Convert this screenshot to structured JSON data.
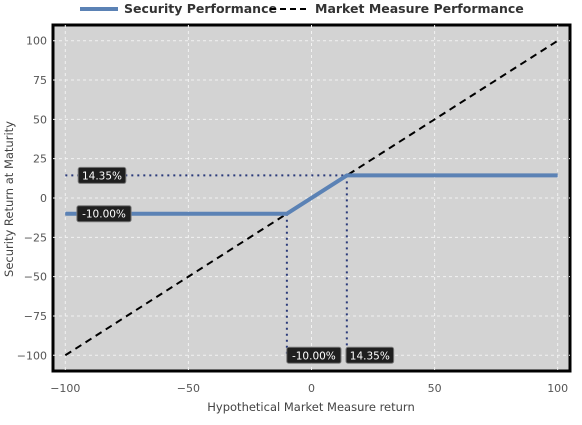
{
  "chart_data": {
    "type": "line",
    "xlabel": "Hypothetical Market Measure return",
    "ylabel": "Security Return at Maturity",
    "xlim": [
      -105,
      105
    ],
    "ylim": [
      -110,
      110
    ],
    "xticks": [
      -100,
      -50,
      0,
      50,
      100
    ],
    "yticks": [
      -100,
      -75,
      -50,
      -25,
      0,
      25,
      50,
      75,
      100
    ],
    "xtick_labels": [
      "−100",
      "−50",
      "0",
      "50",
      "100"
    ],
    "ytick_labels": [
      "−100",
      "−75",
      "−50",
      "−25",
      "0",
      "25",
      "50",
      "75",
      "100"
    ],
    "grid": true,
    "legend_position": "top",
    "series": [
      {
        "name": "Security Performance",
        "color": "#5b82b5",
        "style": "solid",
        "x": [
          -100,
          -10,
          14.35,
          100
        ],
        "y": [
          -10,
          -10,
          14.35,
          14.35
        ]
      },
      {
        "name": "Market Measure Performance",
        "color": "#000000",
        "style": "dashed",
        "x": [
          -100,
          100
        ],
        "y": [
          -100,
          100
        ]
      }
    ],
    "reference_lines": [
      {
        "axis": "y",
        "value": 14.35,
        "label": "14.35%"
      },
      {
        "axis": "y",
        "value": -10,
        "label": "-10.00%"
      },
      {
        "axis": "x",
        "value": -10,
        "label": "-10.00%"
      },
      {
        "axis": "x",
        "value": 14.35,
        "label": "14.35%"
      }
    ]
  }
}
